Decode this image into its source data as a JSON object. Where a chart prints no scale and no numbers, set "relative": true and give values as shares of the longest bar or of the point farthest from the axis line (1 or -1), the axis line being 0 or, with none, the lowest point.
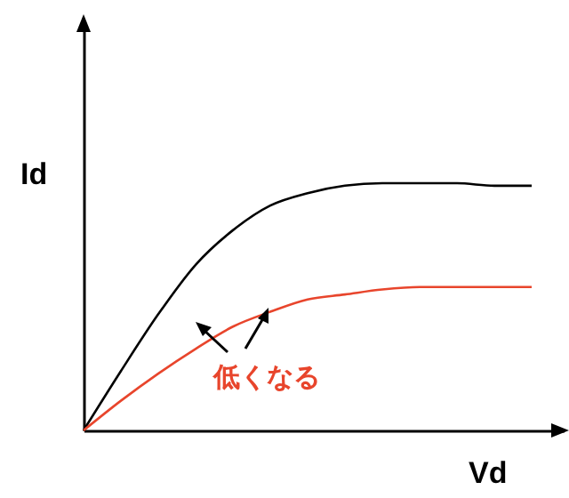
{
  "chart_data": {
    "type": "line",
    "relative": true,
    "xlabel": "Vd",
    "ylabel": "Id",
    "categories": [
      null,
      null,
      null,
      null,
      null,
      null,
      null,
      null,
      null,
      null,
      null,
      null,
      null
    ],
    "series": [
      {
        "color": "#000000",
        "values": [
          0,
          0.24,
          0.47,
          0.67,
          0.81,
          0.91,
          0.96,
          0.99,
          1,
          1,
          1,
          0.99,
          0.99
        ]
      },
      {
        "color": "#e8452c",
        "values": [
          0,
          0.12,
          0.23,
          0.33,
          0.42,
          0.48,
          0.53,
          0.55,
          0.57,
          0.58,
          0.58,
          0.58,
          0.58
        ]
      }
    ],
    "annotations": [
      "低くなる"
    ],
    "grid": false,
    "marker": "none",
    "line_style": "solid"
  }
}
